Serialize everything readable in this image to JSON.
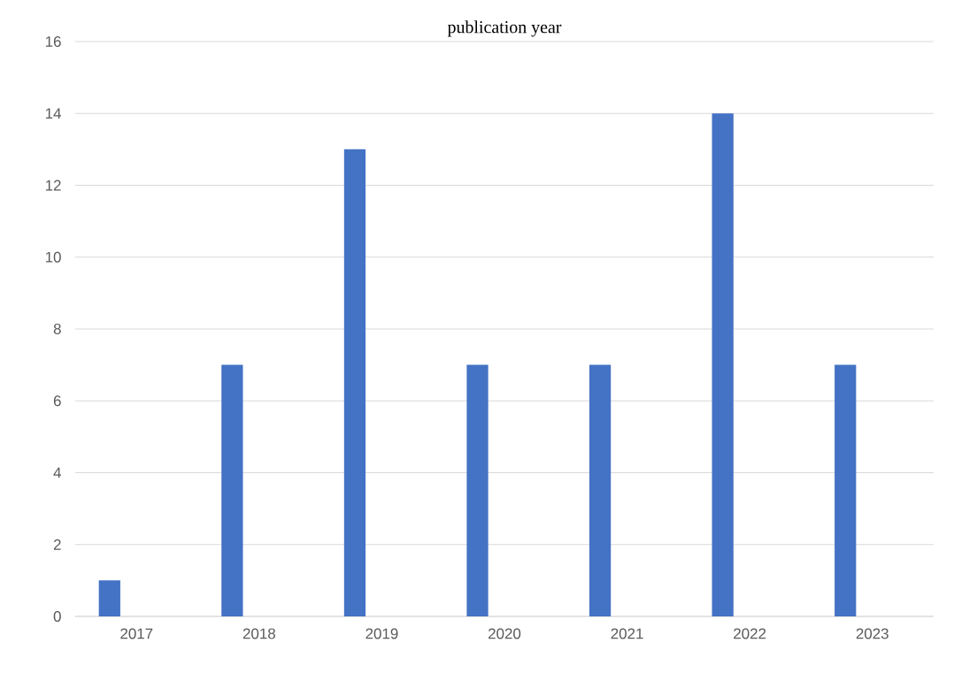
{
  "chart_data": {
    "type": "bar",
    "title": "publication year",
    "categories": [
      "2017",
      "2018",
      "2019",
      "2020",
      "2021",
      "2022",
      "2023"
    ],
    "values": [
      1,
      7,
      13,
      7,
      7,
      14,
      7
    ],
    "color": "#4472c4",
    "ylim": [
      0,
      16
    ],
    "yticks": [
      0,
      2,
      4,
      6,
      8,
      10,
      12,
      14,
      16
    ],
    "grid": "y"
  }
}
